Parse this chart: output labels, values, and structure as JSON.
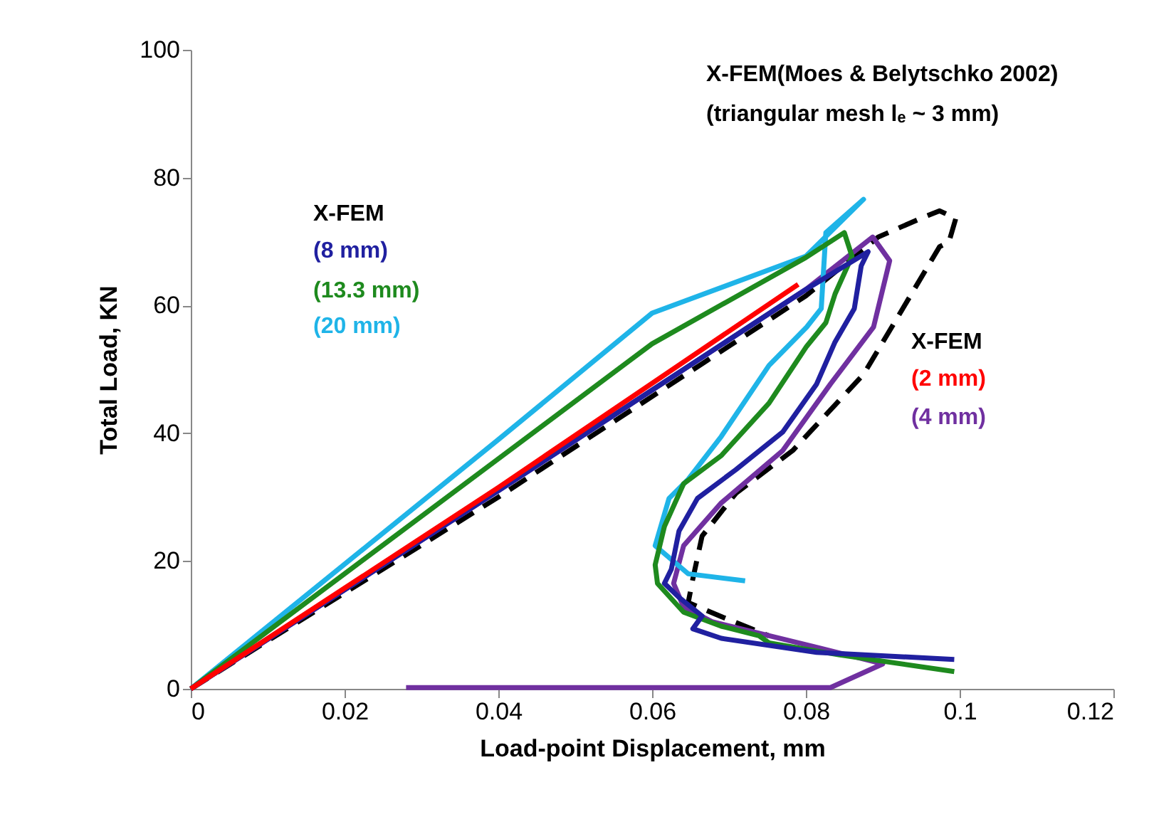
{
  "chart_data": {
    "type": "line",
    "xlabel": "Load-point Displacement, mm",
    "ylabel": "Total Load, KN",
    "xlim": [
      0,
      0.12
    ],
    "xticks": [
      0,
      0.02,
      0.04,
      0.06,
      0.08,
      0.1,
      0.12
    ],
    "ylim": [
      0,
      100
    ],
    "yticks": [
      0,
      20,
      40,
      60,
      80,
      100
    ],
    "grid": false,
    "legend": false,
    "marker": "none",
    "series": [
      {
        "color": "#000000",
        "line_style": "dashed",
        "x": [
          0,
          0.04,
          0.08,
          0.0894,
          0.0949,
          0.0974,
          0.0995,
          0.0986,
          0.0974,
          0.0875,
          0.0783,
          0.0709,
          0.0665,
          0.0653,
          0.0647,
          0.069,
          0.0752
        ],
        "values": [
          0,
          30,
          61.5,
          70.7,
          73.6,
          74.8,
          73.6,
          69.9,
          69.2,
          49.2,
          37.3,
          30.6,
          23.9,
          17.2,
          13.5,
          11.3,
          8.3
        ]
      },
      {
        "name": "(4 mm)",
        "color": "#7030a0",
        "x": [
          0,
          0.04,
          0.08,
          0.0887,
          0.0909,
          0.0888,
          0.0832,
          0.077,
          0.069,
          0.0641,
          0.0628,
          0.0641,
          0.0678,
          0.0814,
          0.09,
          0.0832,
          0.028
        ],
        "values": [
          0,
          31,
          62.5,
          70.7,
          67,
          56.6,
          47.7,
          37.3,
          29.1,
          22.4,
          16.5,
          12.8,
          10.5,
          6.5,
          3.9,
          0.2,
          0.2
        ]
      },
      {
        "name": "(20 mm)",
        "color": "#1fb4e8",
        "x": [
          0,
          0.04,
          0.06,
          0.08,
          0.0875,
          0.0826,
          0.082,
          0.0801,
          0.0752,
          0.069,
          0.0647,
          0.0622,
          0.0604,
          0.0647,
          0.0721
        ],
        "values": [
          0,
          39,
          58.8,
          67.7,
          76.6,
          71.4,
          59.5,
          56.6,
          50.6,
          39.5,
          32.8,
          29.8,
          22.4,
          18,
          16.9
        ]
      },
      {
        "name": "(13.3 mm)",
        "color": "#1e8a1e",
        "x": [
          0,
          0.04,
          0.06,
          0.08,
          0.085,
          0.086,
          0.0838,
          0.0826,
          0.0801,
          0.0752,
          0.069,
          0.0641,
          0.0616,
          0.0604,
          0.0607,
          0.0641,
          0.069,
          0.0739,
          0.0752,
          0.0844,
          0.0993
        ],
        "values": [
          0,
          36,
          54,
          67.5,
          71.4,
          67.7,
          61.8,
          57.3,
          53.6,
          44.7,
          36.5,
          32.1,
          25.4,
          19.4,
          16.5,
          12,
          9.8,
          8.3,
          7.2,
          5.3,
          2.7
        ]
      },
      {
        "name": "(8 mm)",
        "color": "#2020a0",
        "x": [
          0,
          0.04,
          0.08,
          0.0881,
          0.0872,
          0.0863,
          0.0838,
          0.0814,
          0.077,
          0.0709,
          0.0659,
          0.0635,
          0.0625,
          0.0616,
          0.0635,
          0.0665,
          0.0653,
          0.069,
          0.0814,
          0.0993
        ],
        "values": [
          0,
          31,
          62.5,
          68.4,
          66.2,
          59.5,
          54.3,
          47.7,
          40.2,
          34.3,
          29.8,
          24.7,
          18.7,
          16.5,
          14.3,
          11.4,
          9.4,
          7.9,
          5.7,
          4.6
        ]
      },
      {
        "name": "(2 mm)",
        "color": "#ff0000",
        "x": [
          0,
          0.04,
          0.079
        ],
        "values": [
          0,
          31.5,
          63.3
        ]
      }
    ],
    "annotations": [
      "X-FEM(Moes & Belytschko 2002)",
      "(triangular mesh lₑ ~ 3 mm)",
      "X-FEM",
      "X-FEM"
    ]
  }
}
